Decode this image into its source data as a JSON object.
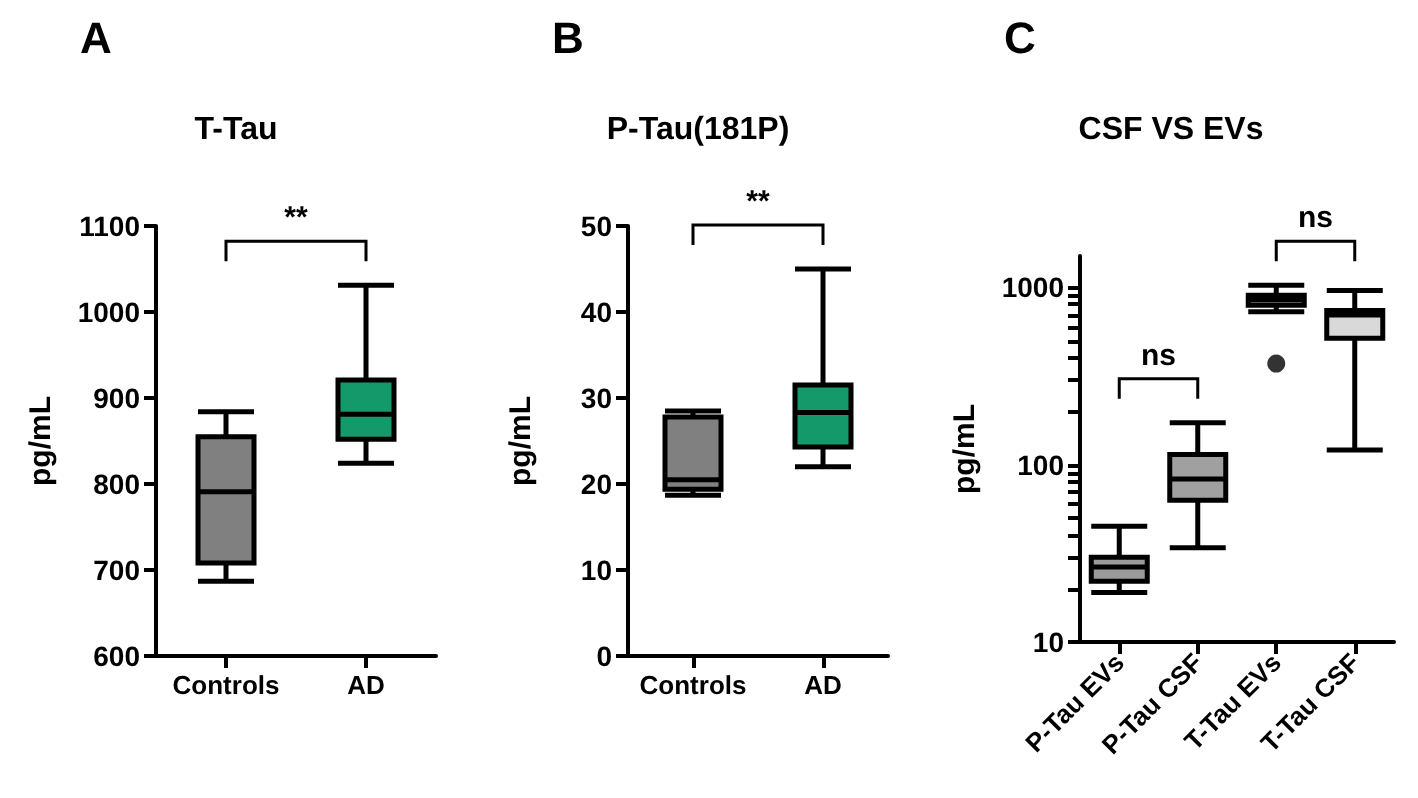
{
  "chart_data": [
    {
      "type": "box",
      "title": "T-Tau",
      "ylabel": "pg/mL",
      "categories": [
        "Controls",
        "AD"
      ],
      "boxes": [
        {
          "low": 687,
          "q1": 708,
          "median": 791,
          "q3": 855,
          "high": 884
        },
        {
          "low": 824,
          "q1": 852,
          "median": 881,
          "q3": 921,
          "high": 1031
        }
      ],
      "colors": [
        "#808080",
        "#149a6a"
      ],
      "ylim": [
        600,
        1100
      ],
      "yticks": [
        600,
        700,
        800,
        900,
        1000,
        1100
      ],
      "grid": false,
      "annotations": [
        "A",
        "**"
      ]
    },
    {
      "type": "box",
      "title": "P-Tau(181P)",
      "ylabel": "pg/mL",
      "categories": [
        "Controls",
        "AD"
      ],
      "boxes": [
        {
          "low": 18.7,
          "q1": 19.4,
          "median": 20.5,
          "q3": 27.8,
          "high": 28.5
        },
        {
          "low": 22,
          "q1": 24.3,
          "median": 28.3,
          "q3": 31.5,
          "high": 45
        }
      ],
      "colors": [
        "#808080",
        "#149a6a"
      ],
      "ylim": [
        0,
        50
      ],
      "yticks": [
        0,
        10,
        20,
        30,
        40,
        50
      ],
      "grid": false,
      "annotations": [
        "B",
        "**"
      ]
    },
    {
      "type": "box",
      "title": "CSF VS EVs",
      "ylabel": "pg/mL",
      "categories": [
        "P-Tau EVs",
        "P-Tau CSF",
        "T-Tau EVs",
        "T-Tau CSF"
      ],
      "boxes": [
        {
          "low": 19,
          "q1": 22,
          "median": 26.5,
          "q3": 30,
          "high": 45
        },
        {
          "low": 34,
          "q1": 63,
          "median": 83,
          "q3": 114,
          "high": 172
        },
        {
          "low": 727,
          "q1": 792,
          "median": 850,
          "q3": 900,
          "high": 1026,
          "outliers": [
            371
          ]
        },
        {
          "low": 121,
          "q1": 515,
          "median": 697,
          "q3": 740,
          "high": 957
        }
      ],
      "colors": [
        "#9a9a9a",
        "#a0a0a0",
        "#a8a8a8",
        "#d9d9d9"
      ],
      "log": true,
      "ylim": [
        10,
        1500
      ],
      "yticks": [
        10,
        {
          "value": 20,
          "label": null
        },
        {
          "value": 30,
          "label": null
        },
        {
          "value": 40,
          "label": null
        },
        {
          "value": 50,
          "label": null
        },
        {
          "value": 60,
          "label": null
        },
        {
          "value": 70,
          "label": null
        },
        {
          "value": 80,
          "label": null
        },
        {
          "value": 90,
          "label": null
        },
        100,
        {
          "value": 200,
          "label": null
        },
        {
          "value": 300,
          "label": null
        },
        {
          "value": 400,
          "label": null
        },
        {
          "value": 500,
          "label": null
        },
        {
          "value": 600,
          "label": null
        },
        {
          "value": 700,
          "label": null
        },
        {
          "value": 800,
          "label": null
        },
        {
          "value": 900,
          "label": null
        },
        1000
      ],
      "grid": false,
      "annotations": [
        "C",
        "ns",
        "ns"
      ]
    }
  ]
}
